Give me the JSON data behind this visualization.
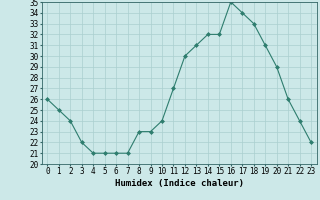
{
  "title": "",
  "xlabel": "Humidex (Indice chaleur)",
  "ylabel": "",
  "x": [
    0,
    1,
    2,
    3,
    4,
    5,
    6,
    7,
    8,
    9,
    10,
    11,
    12,
    13,
    14,
    15,
    16,
    17,
    18,
    19,
    20,
    21,
    22,
    23
  ],
  "y": [
    26,
    25,
    24,
    22,
    21,
    21,
    21,
    21,
    23,
    23,
    24,
    27,
    30,
    31,
    32,
    32,
    35,
    34,
    33,
    31,
    29,
    26,
    24,
    22
  ],
  "ylim": [
    20,
    35
  ],
  "yticks": [
    20,
    21,
    22,
    23,
    24,
    25,
    26,
    27,
    28,
    29,
    30,
    31,
    32,
    33,
    34,
    35
  ],
  "line_color": "#2e7d6e",
  "marker": "D",
  "marker_size": 2.0,
  "bg_color": "#cce8e8",
  "grid_color": "#aacfcf",
  "spine_color": "#336666",
  "label_fontsize": 6.5,
  "tick_fontsize": 5.5
}
